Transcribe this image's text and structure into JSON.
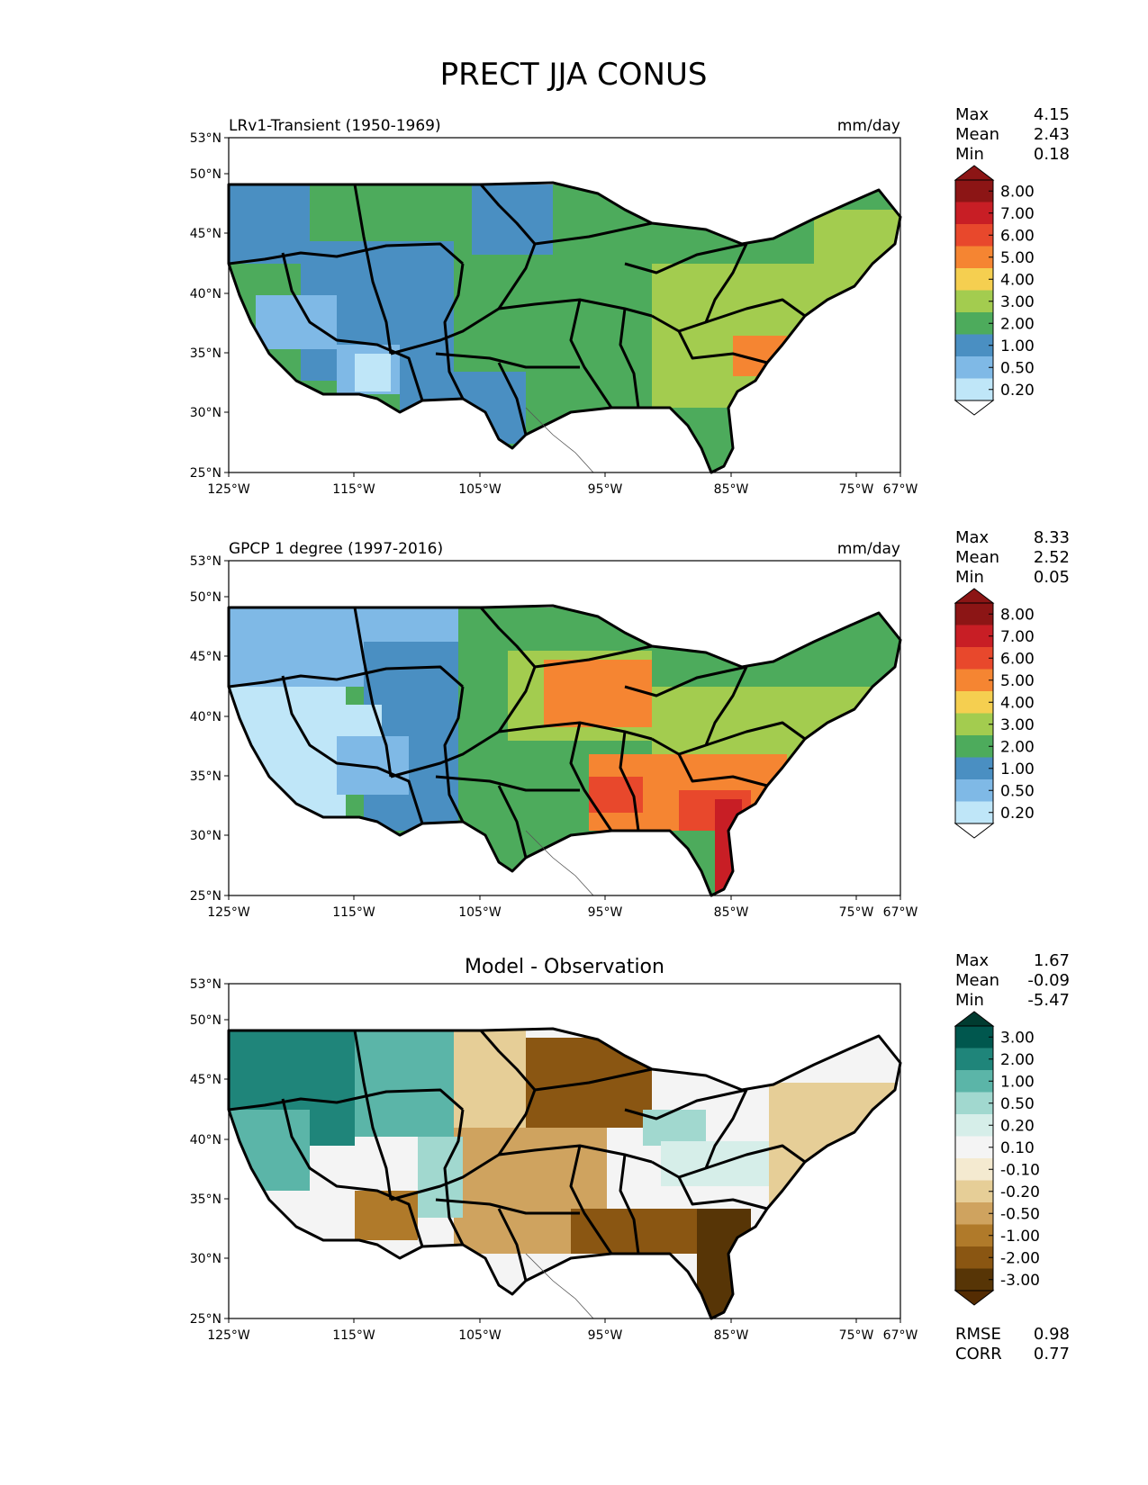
{
  "figure": {
    "title": "PRECT JJA CONUS",
    "lat_ticks": [
      "53°N",
      "50°N",
      "45°N",
      "40°N",
      "35°N",
      "30°N",
      "25°N"
    ],
    "lon_ticks": [
      "125°W",
      "115°W",
      "105°W",
      "95°W",
      "85°W",
      "75°W",
      "67°W"
    ]
  },
  "panels": [
    {
      "id": "model",
      "left_title": "LRv1-Transient (1950-1969)",
      "center_title": "",
      "units": "mm/day",
      "stats": [
        {
          "label": "Max",
          "value": "4.15"
        },
        {
          "label": "Mean",
          "value": "2.43"
        },
        {
          "label": "Min",
          "value": "0.18"
        }
      ],
      "colorbar": {
        "labels": [
          "8.00",
          "7.00",
          "6.00",
          "5.00",
          "4.00",
          "3.00",
          "2.00",
          "1.00",
          "0.50",
          "0.20"
        ],
        "colors": [
          "#8c1515",
          "#c81e25",
          "#e8482c",
          "#f58532",
          "#f5cf50",
          "#a3cc4f",
          "#4dab5c",
          "#4a8fc2",
          "#7fb9e6",
          "#bfe6f8"
        ],
        "top_cap": "#8c1515",
        "bottom_cap": "#ffffff"
      },
      "footer": []
    },
    {
      "id": "obs",
      "left_title": "GPCP 1 degree (1997-2016)",
      "center_title": "",
      "units": "mm/day",
      "stats": [
        {
          "label": "Max",
          "value": "8.33"
        },
        {
          "label": "Mean",
          "value": "2.52"
        },
        {
          "label": "Min",
          "value": "0.05"
        }
      ],
      "colorbar": {
        "labels": [
          "8.00",
          "7.00",
          "6.00",
          "5.00",
          "4.00",
          "3.00",
          "2.00",
          "1.00",
          "0.50",
          "0.20"
        ],
        "colors": [
          "#8c1515",
          "#c81e25",
          "#e8482c",
          "#f58532",
          "#f5cf50",
          "#a3cc4f",
          "#4dab5c",
          "#4a8fc2",
          "#7fb9e6",
          "#bfe6f8"
        ],
        "top_cap": "#8c1515",
        "bottom_cap": "#ffffff"
      },
      "footer": []
    },
    {
      "id": "diff",
      "left_title": "",
      "center_title": "Model - Observation",
      "units": "",
      "stats": [
        {
          "label": "Max",
          "value": "1.67"
        },
        {
          "label": "Mean",
          "value": "-0.09"
        },
        {
          "label": "Min",
          "value": "-5.47"
        }
      ],
      "colorbar": {
        "labels": [
          "3.00",
          "2.00",
          "1.00",
          "0.50",
          "0.20",
          "0.10",
          "-0.10",
          "-0.20",
          "-0.50",
          "-1.00",
          "-2.00",
          "-3.00"
        ],
        "colors": [
          "#00574e",
          "#1f857a",
          "#5bb5a8",
          "#a1d8cf",
          "#d6eee9",
          "#f4f4f4",
          "#f4ead0",
          "#e6ce97",
          "#cfa35f",
          "#b07a2a",
          "#8a5612",
          "#573506"
        ],
        "top_cap": "#003b30",
        "bottom_cap": "#542c02"
      },
      "footer": [
        {
          "label": "RMSE",
          "value": "0.98"
        },
        {
          "label": "CORR",
          "value": "0.77"
        }
      ]
    }
  ]
}
